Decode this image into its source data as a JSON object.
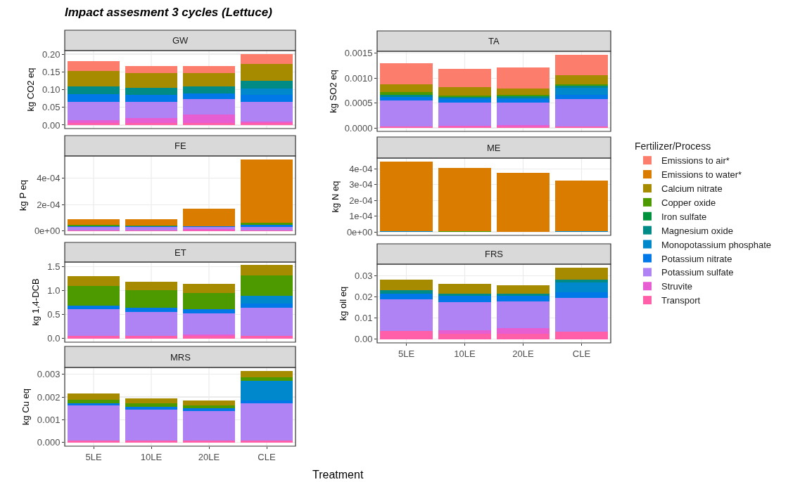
{
  "chart_data": [
    {
      "type": "bar",
      "title": "GW",
      "ylabel": "kg CO2 eq",
      "annotations": [
        "Impact assesment 3 cycles (Lettuce)"
      ],
      "stacked": true,
      "grid": true,
      "categories": [
        null,
        null,
        null,
        null
      ],
      "ylim": [
        -0.01,
        0.21
      ],
      "yticks": [
        {
          "value": 0,
          "label": "0.00"
        },
        {
          "value": 0.05,
          "label": "0.05"
        },
        {
          "value": 0.1,
          "label": "0.10"
        },
        {
          "value": 0.15,
          "label": "0.15"
        },
        {
          "value": 0.2,
          "label": "0.20"
        }
      ],
      "series": [
        {
          "color": "#ff5fa8",
          "values": [
            0.005,
            0.005,
            0.005,
            0.005
          ]
        },
        {
          "color": "#e75ed2",
          "values": [
            0.009,
            0.014,
            0.024,
            0.004
          ]
        },
        {
          "color": "#b083f5",
          "values": [
            0.051,
            0.046,
            0.045,
            0.056
          ]
        },
        {
          "color": "#0078e8",
          "values": [
            0.022,
            0.02,
            0.016,
            0.021
          ]
        },
        {
          "color": "#0088cc",
          "values": [
            0,
            0,
            0,
            0.016
          ]
        },
        {
          "color": "#008b86",
          "values": [
            0.022,
            0.019,
            0.019,
            0.023
          ]
        },
        {
          "color": "#a68a00",
          "values": [
            0.044,
            0.043,
            0.038,
            0.048
          ]
        },
        {
          "color": "#fc7d6b",
          "values": [
            0.027,
            0.02,
            0.02,
            0.027
          ]
        }
      ]
    },
    {
      "type": "bar",
      "title": "TA",
      "ylabel": "kg SO2 eq",
      "legend": "right",
      "legend_title": "Fertilizer/Process",
      "stacked": true,
      "grid": true,
      "categories": [
        null,
        null,
        null,
        null
      ],
      "ylim": [
        -7e-05,
        0.00154
      ],
      "yticks": [
        {
          "value": 0,
          "label": "0.0000"
        },
        {
          "value": 0.0005,
          "label": "0.0005"
        },
        {
          "value": 0.001,
          "label": "0.0010"
        },
        {
          "value": 0.0015,
          "label": "0.0015"
        }
      ],
      "series": [
        {
          "name": "Transport",
          "color": "#ff5fa8",
          "values": [
            3e-05,
            3e-05,
            3e-05,
            3e-05
          ]
        },
        {
          "name": "Struvite",
          "color": "#e75ed2",
          "values": [
            0,
            2e-05,
            3e-05,
            0
          ]
        },
        {
          "name": "Potassium sulfate",
          "color": "#b083f5",
          "values": [
            0.00052,
            0.00046,
            0.00045,
            0.00055
          ]
        },
        {
          "name": "Potassium nitrate",
          "color": "#0078e8",
          "values": [
            7e-05,
            8e-05,
            9e-05,
            9e-05
          ]
        },
        {
          "name": "Monopotassium phosphate",
          "color": "#0088cc",
          "values": [
            0,
            0,
            0,
            0.00014
          ]
        },
        {
          "name": "Magnesium oxide",
          "color": "#008b86",
          "values": [
            4e-05,
            3e-05,
            3e-05,
            4e-05
          ]
        },
        {
          "name": "Iron sulfate",
          "color": "#00913c",
          "values": [
            0,
            0,
            0,
            0
          ]
        },
        {
          "name": "Copper oxide",
          "color": "#4d9a00",
          "values": [
            6e-05,
            3e-05,
            3e-05,
            3e-05
          ]
        },
        {
          "name": "Calcium nitrate",
          "color": "#a68a00",
          "values": [
            0.00016,
            0.00017,
            0.00013,
            0.00018
          ]
        },
        {
          "name": "Emissions to water*",
          "color": "#d97c00",
          "values": [
            0,
            0,
            0,
            0
          ]
        },
        {
          "name": "Emissions to air*",
          "color": "#fc7d6b",
          "values": [
            0.00042,
            0.00037,
            0.00043,
            0.00041
          ]
        }
      ]
    },
    {
      "type": "bar",
      "title": "FE",
      "ylabel": "kg P eq",
      "stacked": true,
      "grid": true,
      "categories": [
        null,
        null,
        null,
        null
      ],
      "ylim": [
        -2.7e-05,
        0.000566
      ],
      "yticks": [
        {
          "value": 0,
          "label": "0e+00"
        },
        {
          "value": 0.0002,
          "label": "2e-04"
        },
        {
          "value": 0.0004,
          "label": "4e-04"
        }
      ],
      "series": [
        {
          "color": "#ff5fa8",
          "values": [
            3e-06,
            3e-06,
            3e-06,
            3e-06
          ]
        },
        {
          "color": "#e75ed2",
          "values": [
            0,
            0,
            1.1e-05,
            0
          ]
        },
        {
          "color": "#b083f5",
          "values": [
            2.7e-05,
            2.7e-05,
            1.7e-05,
            2.7e-05
          ]
        },
        {
          "color": "#0078e8",
          "values": [
            8e-06,
            5e-06,
            3e-06,
            1.9e-05
          ]
        },
        {
          "color": "#4d9a00",
          "values": [
            7e-06,
            5e-06,
            3e-06,
            1.2e-05
          ]
        },
        {
          "color": "#d97c00",
          "values": [
            4.4e-05,
            5e-05,
            0.00013,
            0.000478
          ]
        }
      ]
    },
    {
      "type": "bar",
      "title": "ME",
      "ylabel": "kg N eq",
      "stacked": true,
      "grid": true,
      "categories": [
        null,
        null,
        null,
        null
      ],
      "ylim": [
        -2.2e-05,
        0.000468
      ],
      "yticks": [
        {
          "value": 0,
          "label": "0e+00"
        },
        {
          "value": 0.0001,
          "label": "1e-04"
        },
        {
          "value": 0.0002,
          "label": "2e-04"
        },
        {
          "value": 0.0003,
          "label": "3e-04"
        },
        {
          "value": 0.0004,
          "label": "4e-04"
        }
      ],
      "series": [
        {
          "color": "#0088cc",
          "values": [
            5e-06,
            0,
            0,
            5e-06
          ]
        },
        {
          "color": "#4d9a00",
          "values": [
            0,
            3e-06,
            0,
            0
          ]
        },
        {
          "color": "#d97c00",
          "values": [
            0.00044,
            0.000404,
            0.000374,
            0.000322
          ]
        }
      ]
    },
    {
      "type": "bar",
      "title": "ET",
      "ylabel": "kg 1,4-DCB",
      "stacked": true,
      "grid": true,
      "categories": [
        null,
        null,
        null,
        null
      ],
      "ylim": [
        -0.076,
        1.6
      ],
      "yticks": [
        {
          "value": 0,
          "label": "0.0"
        },
        {
          "value": 0.5,
          "label": "0.5"
        },
        {
          "value": 1,
          "label": "1.0"
        },
        {
          "value": 1.5,
          "label": "1.5"
        }
      ],
      "series": [
        {
          "color": "#ff5fa8",
          "values": [
            0.06,
            0.05,
            0.05,
            0.06
          ]
        },
        {
          "color": "#e75ed2",
          "values": [
            0,
            0,
            0.03,
            0
          ]
        },
        {
          "color": "#b083f5",
          "values": [
            0.55,
            0.5,
            0.45,
            0.59
          ]
        },
        {
          "color": "#0078e8",
          "values": [
            0.08,
            0.09,
            0.09,
            0.09
          ]
        },
        {
          "color": "#0088cc",
          "values": [
            0,
            0,
            0,
            0.15
          ]
        },
        {
          "color": "#4d9a00",
          "values": [
            0.41,
            0.37,
            0.33,
            0.43
          ]
        },
        {
          "color": "#a68a00",
          "values": [
            0.21,
            0.18,
            0.19,
            0.22
          ]
        }
      ]
    },
    {
      "type": "bar",
      "title": "FRS",
      "ylabel": "kg oil eq",
      "stacked": true,
      "grid": true,
      "categories": [
        "5LE",
        "10LE",
        "20LE",
        "CLE"
      ],
      "ylim": [
        -0.0017,
        0.0355
      ],
      "yticks": [
        {
          "value": 0,
          "label": "0.00"
        },
        {
          "value": 0.01,
          "label": "0.01"
        },
        {
          "value": 0.02,
          "label": "0.02"
        },
        {
          "value": 0.03,
          "label": "0.03"
        }
      ],
      "series": [
        {
          "color": "#ff5fa8",
          "values": [
            0.0039,
            0.0027,
            0.0027,
            0.0036
          ]
        },
        {
          "color": "#e75ed2",
          "values": [
            0,
            0.0016,
            0.0026,
            0
          ]
        },
        {
          "color": "#b083f5",
          "values": [
            0.015,
            0.0134,
            0.0127,
            0.016
          ]
        },
        {
          "color": "#0078e8",
          "values": [
            0.0027,
            0.0027,
            0.0025,
            0.0027
          ]
        },
        {
          "color": "#0088cc",
          "values": [
            0,
            0,
            0,
            0.0044
          ]
        },
        {
          "color": "#008b86",
          "values": [
            0.0015,
            0.0012,
            0.0011,
            0.0015
          ]
        },
        {
          "color": "#a68a00",
          "values": [
            0.0051,
            0.0046,
            0.0041,
            0.0056
          ]
        }
      ]
    },
    {
      "type": "bar",
      "title": "MRS",
      "ylabel": "kg Cu eq",
      "xlabel": "Treatment",
      "stacked": true,
      "grid": true,
      "categories": [
        "5LE",
        "10LE",
        "20LE",
        "CLE"
      ],
      "ylim": [
        -0.00016,
        0.0033
      ],
      "yticks": [
        {
          "value": 0,
          "label": "0.000"
        },
        {
          "value": 0.001,
          "label": "0.001"
        },
        {
          "value": 0.002,
          "label": "0.002"
        },
        {
          "value": 0.003,
          "label": "0.003"
        }
      ],
      "series": [
        {
          "color": "#ff5fa8",
          "values": [
            8e-05,
            8e-05,
            8e-05,
            8e-05
          ]
        },
        {
          "color": "#b083f5",
          "values": [
            0.00154,
            0.00136,
            0.0013,
            0.00166
          ]
        },
        {
          "color": "#0078e8",
          "values": [
            0.00012,
            0.00013,
            0.00013,
            0.0001
          ]
        },
        {
          "color": "#0088cc",
          "values": [
            0,
            0,
            0,
            0.00088
          ]
        },
        {
          "color": "#4d9a00",
          "values": [
            0.00013,
            0.00016,
            0.00011,
            0.00016
          ]
        },
        {
          "color": "#a68a00",
          "values": [
            0.00028,
            0.00022,
            0.00023,
            0.00026
          ]
        }
      ]
    }
  ]
}
